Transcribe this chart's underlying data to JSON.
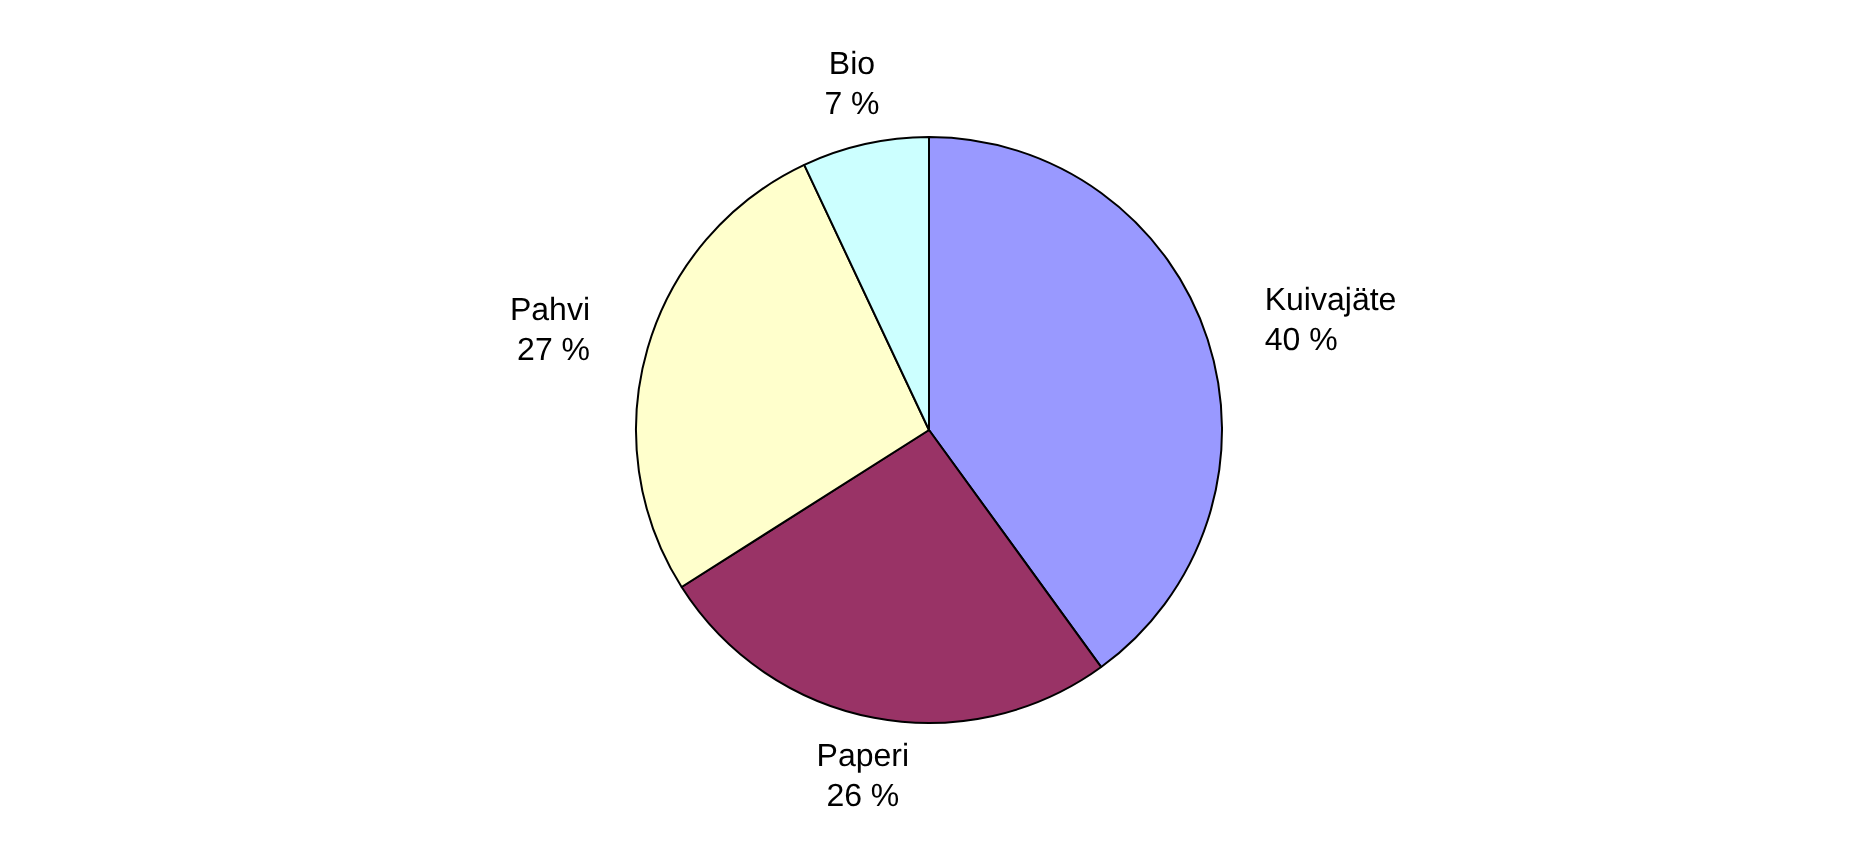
{
  "chart_data": {
    "type": "pie",
    "categories": [
      "Kuivajäte",
      "Paperi",
      "Pahvi",
      "Bio"
    ],
    "values": [
      40,
      26,
      27,
      7
    ],
    "colors": [
      "#9999ff",
      "#993366",
      "#ffffcc",
      "#ccffff"
    ],
    "value_labels": [
      "40 %",
      "26 %",
      "27 %",
      "7 %"
    ],
    "legend": false
  }
}
